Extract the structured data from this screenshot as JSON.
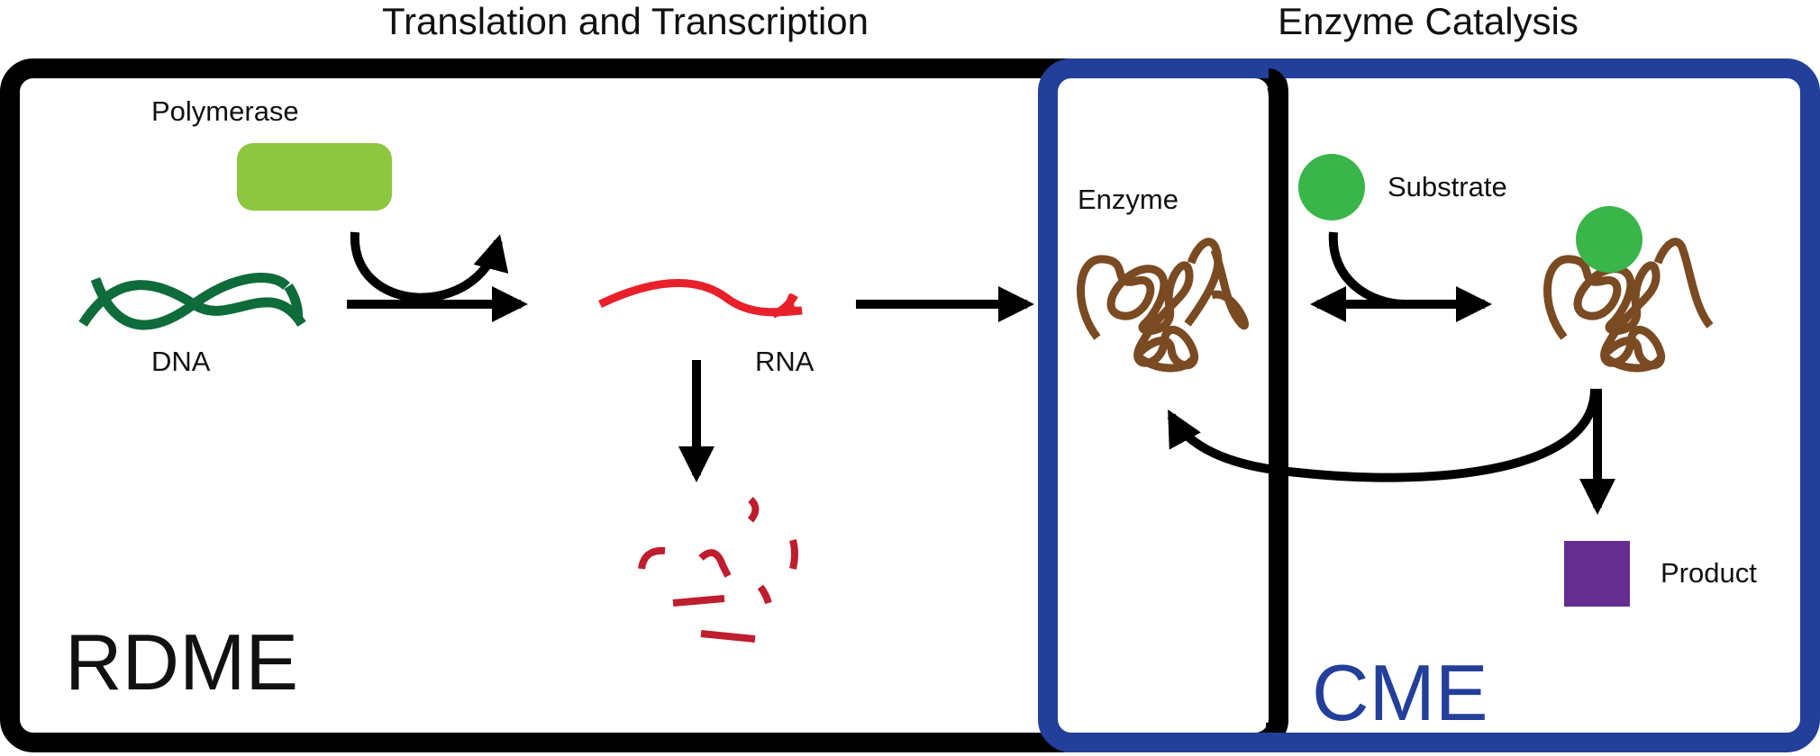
{
  "headings": {
    "left": "Translation and Transcription",
    "right": "Enzyme Catalysis"
  },
  "regions": {
    "rdme": "RDME",
    "cme": "CME"
  },
  "labels": {
    "polymerase": "Polymerase",
    "dna": "DNA",
    "rna": "RNA",
    "enzyme": "Enzyme",
    "substrate": "Substrate",
    "product": "Product"
  },
  "colors": {
    "rdme_border": "#000000",
    "cme_border": "#233f9a",
    "polymerase": "#8dc63f",
    "dna": "#0e6b3a",
    "rna": "#e8202a",
    "rna_fragments": "#be1e2d",
    "enzyme": "#7a4a22",
    "substrate": "#39b54a",
    "product": "#662d91",
    "arrows": "#000000"
  },
  "icons": [
    "polymerase-shape",
    "dna-helix",
    "rna-strand",
    "rna-fragments",
    "enzyme-coil",
    "substrate-circle",
    "product-square"
  ]
}
